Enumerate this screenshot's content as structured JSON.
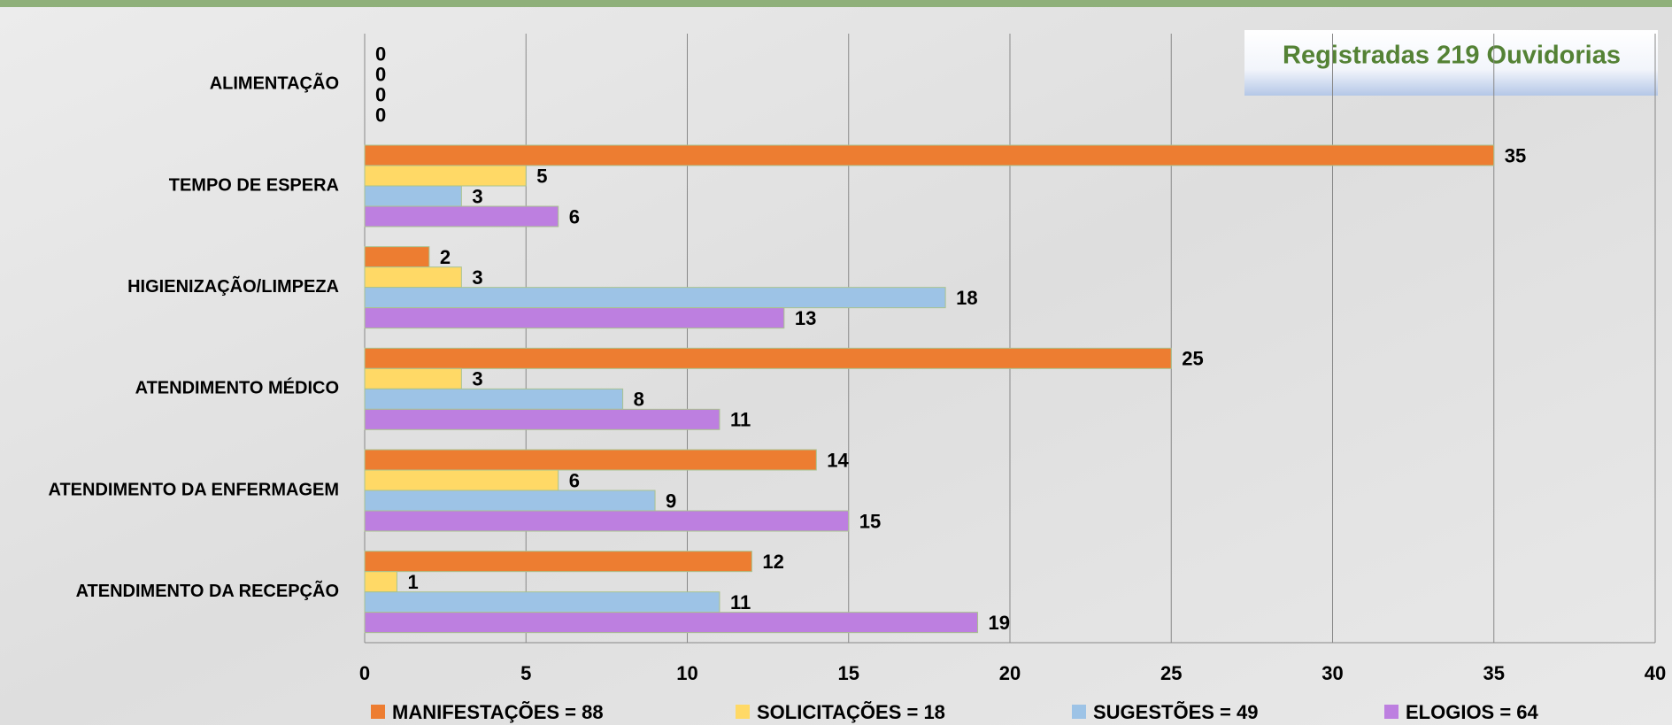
{
  "chart_data": {
    "type": "barh",
    "annotation": "Registradas 219 Ouvidorias",
    "categories": [
      "ALIMENTAÇÃO",
      "TEMPO DE ESPERA",
      "HIGIENIZAÇÃO/LIMPEZA",
      "ATENDIMENTO MÉDICO",
      "ATENDIMENTO DA ENFERMAGEM",
      "ATENDIMENTO DA RECEPÇÃO"
    ],
    "series": [
      {
        "name": "MANIFESTAÇÕES = 88",
        "color": "#ed7d31",
        "values": [
          0,
          35,
          2,
          25,
          14,
          12
        ]
      },
      {
        "name": "SOLICITAÇÕES = 18",
        "color": "#ffd966",
        "values": [
          0,
          5,
          3,
          3,
          6,
          1
        ]
      },
      {
        "name": "SUGESTÕES = 49",
        "color": "#9dc3e6",
        "values": [
          0,
          3,
          18,
          8,
          9,
          11
        ]
      },
      {
        "name": "ELOGIOS = 64",
        "color": "#bd7fe0",
        "values": [
          0,
          6,
          13,
          11,
          15,
          19
        ]
      }
    ],
    "xlim": [
      0,
      40
    ],
    "xticks": [
      0,
      5,
      10,
      15,
      20,
      25,
      30,
      35,
      40
    ],
    "grid": true,
    "legend": "bottom"
  }
}
